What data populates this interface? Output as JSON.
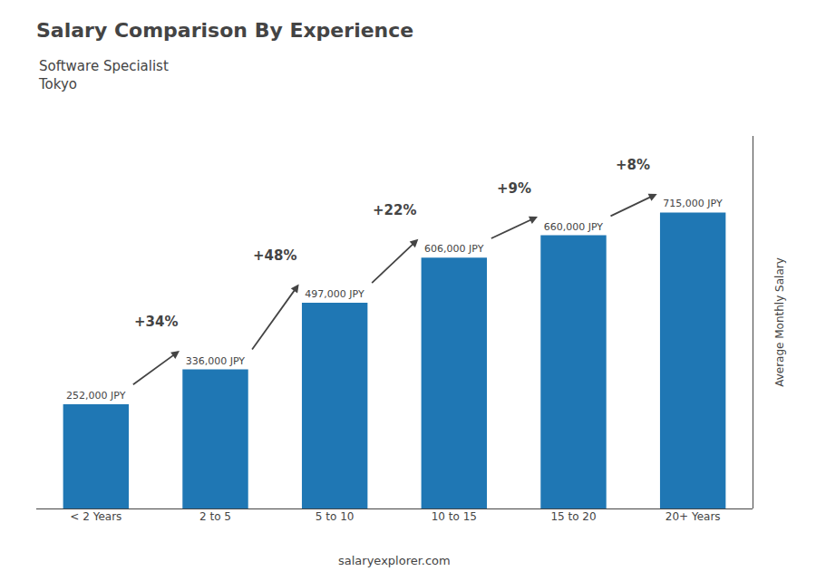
{
  "chart_data": {
    "type": "bar",
    "title": "Salary Comparison By Experience",
    "subtitle": [
      "Software Specialist",
      "Tokyo"
    ],
    "ylabel": "Average Monthly Salary",
    "footer": "salaryexplorer.com",
    "categories": [
      "< 2 Years",
      "2 to 5",
      "5 to 10",
      "10 to 15",
      "15 to 20",
      "20+ Years"
    ],
    "values": [
      252000,
      336000,
      497000,
      606000,
      660000,
      715000
    ],
    "data_labels": true,
    "value_labels": [
      "252,000 JPY",
      "336,000 JPY",
      "497,000 JPY",
      "606,000 JPY",
      "660,000 JPY",
      "715,000 JPY"
    ],
    "ylim": [
      0,
      900000
    ],
    "tick_labels": "x",
    "grid": false,
    "annotations": [
      {
        "text": "+34%",
        "from": "< 2 Years",
        "to": "2 to 5"
      },
      {
        "text": "+48%",
        "from": "2 to 5",
        "to": "5 to 10"
      },
      {
        "text": "+22%",
        "from": "5 to 10",
        "to": "10 to 15"
      },
      {
        "text": "+9%",
        "from": "10 to 15",
        "to": "15 to 20"
      },
      {
        "text": "+8%",
        "from": "15 to 20",
        "to": "20+ Years"
      }
    ]
  }
}
